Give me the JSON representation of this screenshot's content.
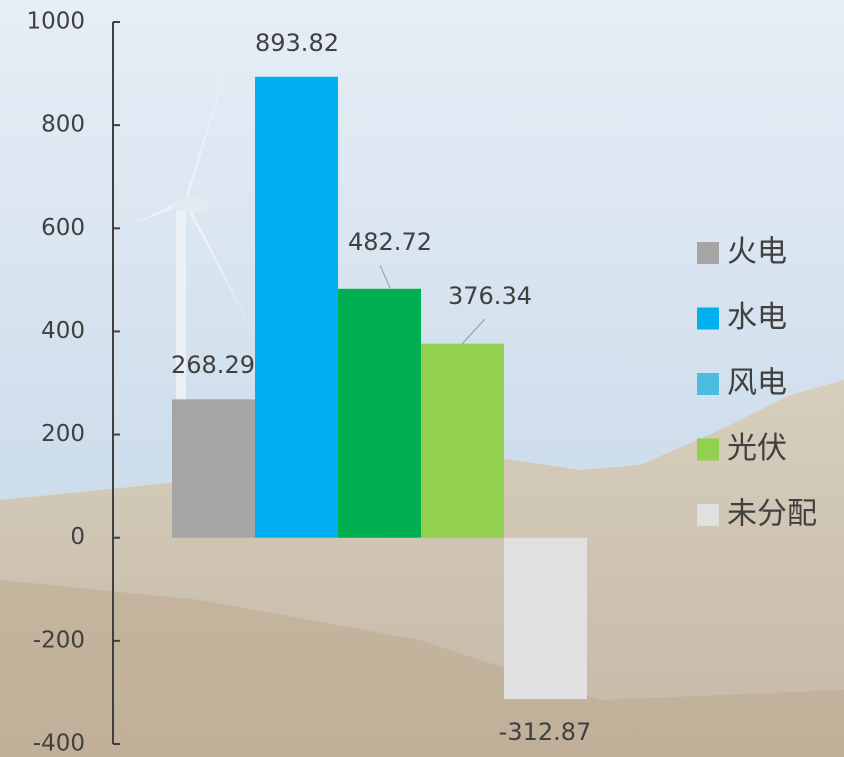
{
  "chart_data": {
    "type": "bar",
    "series": [
      {
        "name": "火电",
        "color": "#a5a5a5",
        "legend_color": "#a5a5a5",
        "values": [
          268.29
        ]
      },
      {
        "name": "水电",
        "color": "#00b0f0",
        "legend_color": "#00b0f0",
        "values": [
          893.82
        ]
      },
      {
        "name": "风电",
        "color": "#00b050",
        "legend_color": "#4bbde0",
        "values": [
          482.72
        ]
      },
      {
        "name": "光伏",
        "color": "#92d050",
        "legend_color": "#92d050",
        "values": [
          376.34
        ]
      },
      {
        "name": "未分配",
        "color": "#e0e0e0",
        "legend_color": "#e0e0e0",
        "values": [
          -312.87
        ]
      }
    ],
    "ylim": [
      -400,
      1000
    ],
    "yticks": [
      -400,
      -200,
      0,
      200,
      400,
      600,
      800,
      1000
    ],
    "legend": "right"
  }
}
